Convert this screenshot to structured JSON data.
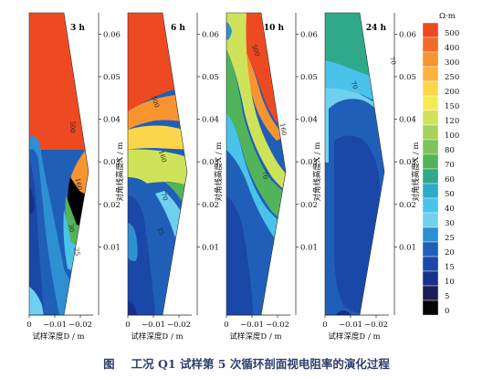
{
  "caption": {
    "figure_no": "图",
    "text": "工况 Q1 试样第 5 次循环剖面视电阻率的演化过程"
  },
  "colorbar": {
    "unit": "Ω·m",
    "levels": [
      500,
      400,
      300,
      250,
      200,
      150,
      120,
      100,
      80,
      70,
      60,
      50,
      40,
      30,
      25,
      20,
      15,
      10,
      5,
      0
    ],
    "colors": [
      "#ee4a22",
      "#f26b2a",
      "#f79430",
      "#fbb43c",
      "#fcd64a",
      "#f4ec55",
      "#cfe35a",
      "#a6d35b",
      "#7fc35a",
      "#52b45a",
      "#2ea98a",
      "#2dabc8",
      "#49c3ea",
      "#6fd1f0",
      "#2e8fd2",
      "#1f5fb8",
      "#1a48a8",
      "#182f8c",
      "#1a1f55",
      "#050505"
    ]
  },
  "chart_data": [
    {
      "type": "heatmap",
      "title": "3 h",
      "xlabel": "试样深度D / m",
      "ylabel": "对角线高度X / m",
      "x_ticks": [
        "0",
        "−0.01",
        "−0.02"
      ],
      "y_ticks": [
        "0.06",
        "0.05",
        "0.04",
        "0.03",
        "0.02",
        "0.01"
      ],
      "xlim": [
        0,
        -0.025
      ],
      "ylim": [
        -0.006,
        0.065
      ],
      "contour_labels": [
        "500",
        "160",
        "30",
        "25"
      ]
    },
    {
      "type": "heatmap",
      "title": "6 h",
      "xlabel": "试样深度D / m",
      "ylabel": "对角线高度X / m",
      "x_ticks": [
        "0",
        "−0.01",
        "−0.02"
      ],
      "y_ticks": [
        "0.06",
        "0.05",
        "0.04",
        "0.03",
        "0.02",
        "0.01"
      ],
      "xlim": [
        0,
        -0.025
      ],
      "ylim": [
        -0.006,
        0.065
      ],
      "contour_labels": [
        "500",
        "160",
        "70",
        "25"
      ]
    },
    {
      "type": "heatmap",
      "title": "10 h",
      "xlabel": "试样深度D / m",
      "ylabel": "对角线高度X / m",
      "x_ticks": [
        "0",
        "−0.01",
        "−0.02"
      ],
      "y_ticks": [
        "0.06",
        "0.05",
        "0.04",
        "0.03",
        "0.02",
        "0.01"
      ],
      "xlim": [
        0,
        -0.025
      ],
      "ylim": [
        -0.006,
        0.065
      ],
      "contour_labels": [
        "500",
        "160",
        "70"
      ]
    },
    {
      "type": "heatmap",
      "title": "24 h",
      "xlabel": "试样深度D / m",
      "ylabel": "对角线高度X / m",
      "x_ticks": [
        "0",
        "−0.01",
        "−0.02"
      ],
      "y_ticks": [
        "0.06",
        "0.05",
        "0.04",
        "0.03",
        "0.02",
        "0.01"
      ],
      "xlim": [
        0,
        -0.025
      ],
      "ylim": [
        -0.006,
        0.065
      ],
      "contour_labels": [
        "70",
        "70"
      ]
    }
  ]
}
